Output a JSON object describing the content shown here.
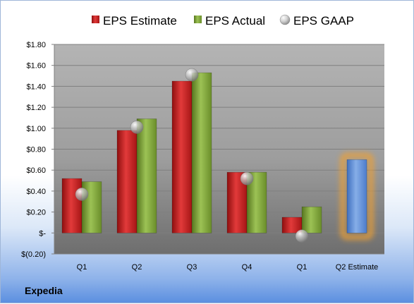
{
  "company": "Expedia",
  "chart_data": {
    "type": "bar",
    "categories": [
      "Q1",
      "Q2",
      "Q3",
      "Q4",
      "Q1",
      "Q2 Estimate"
    ],
    "series": [
      {
        "name": "EPS Estimate",
        "values": [
          0.52,
          0.98,
          1.45,
          0.58,
          0.15,
          null
        ],
        "color": "#cc1f1f"
      },
      {
        "name": "EPS Actual",
        "values": [
          0.49,
          1.09,
          1.53,
          0.58,
          0.25,
          null
        ],
        "color": "#7ea33a"
      },
      {
        "name": "EPS GAAP",
        "values": [
          0.37,
          1.01,
          1.51,
          0.52,
          -0.03,
          null
        ],
        "color": "#b8b8b8",
        "marker": "sphere"
      }
    ],
    "estimate": {
      "category": "Q2 Estimate",
      "value": 0.7,
      "color": "#5b8ed6",
      "glow": "#f0a030"
    },
    "ylim": [
      -0.2,
      1.8
    ],
    "yticks": [
      -0.2,
      0,
      0.2,
      0.4,
      0.6,
      0.8,
      1.0,
      1.2,
      1.4,
      1.6,
      1.8
    ],
    "ytick_labels": [
      "$(0.20)",
      "$-",
      "$0.20",
      "$0.40",
      "$0.60",
      "$0.80",
      "$1.00",
      "$1.20",
      "$1.40",
      "$1.60",
      "$1.80"
    ],
    "grid": true,
    "legend": "top"
  }
}
